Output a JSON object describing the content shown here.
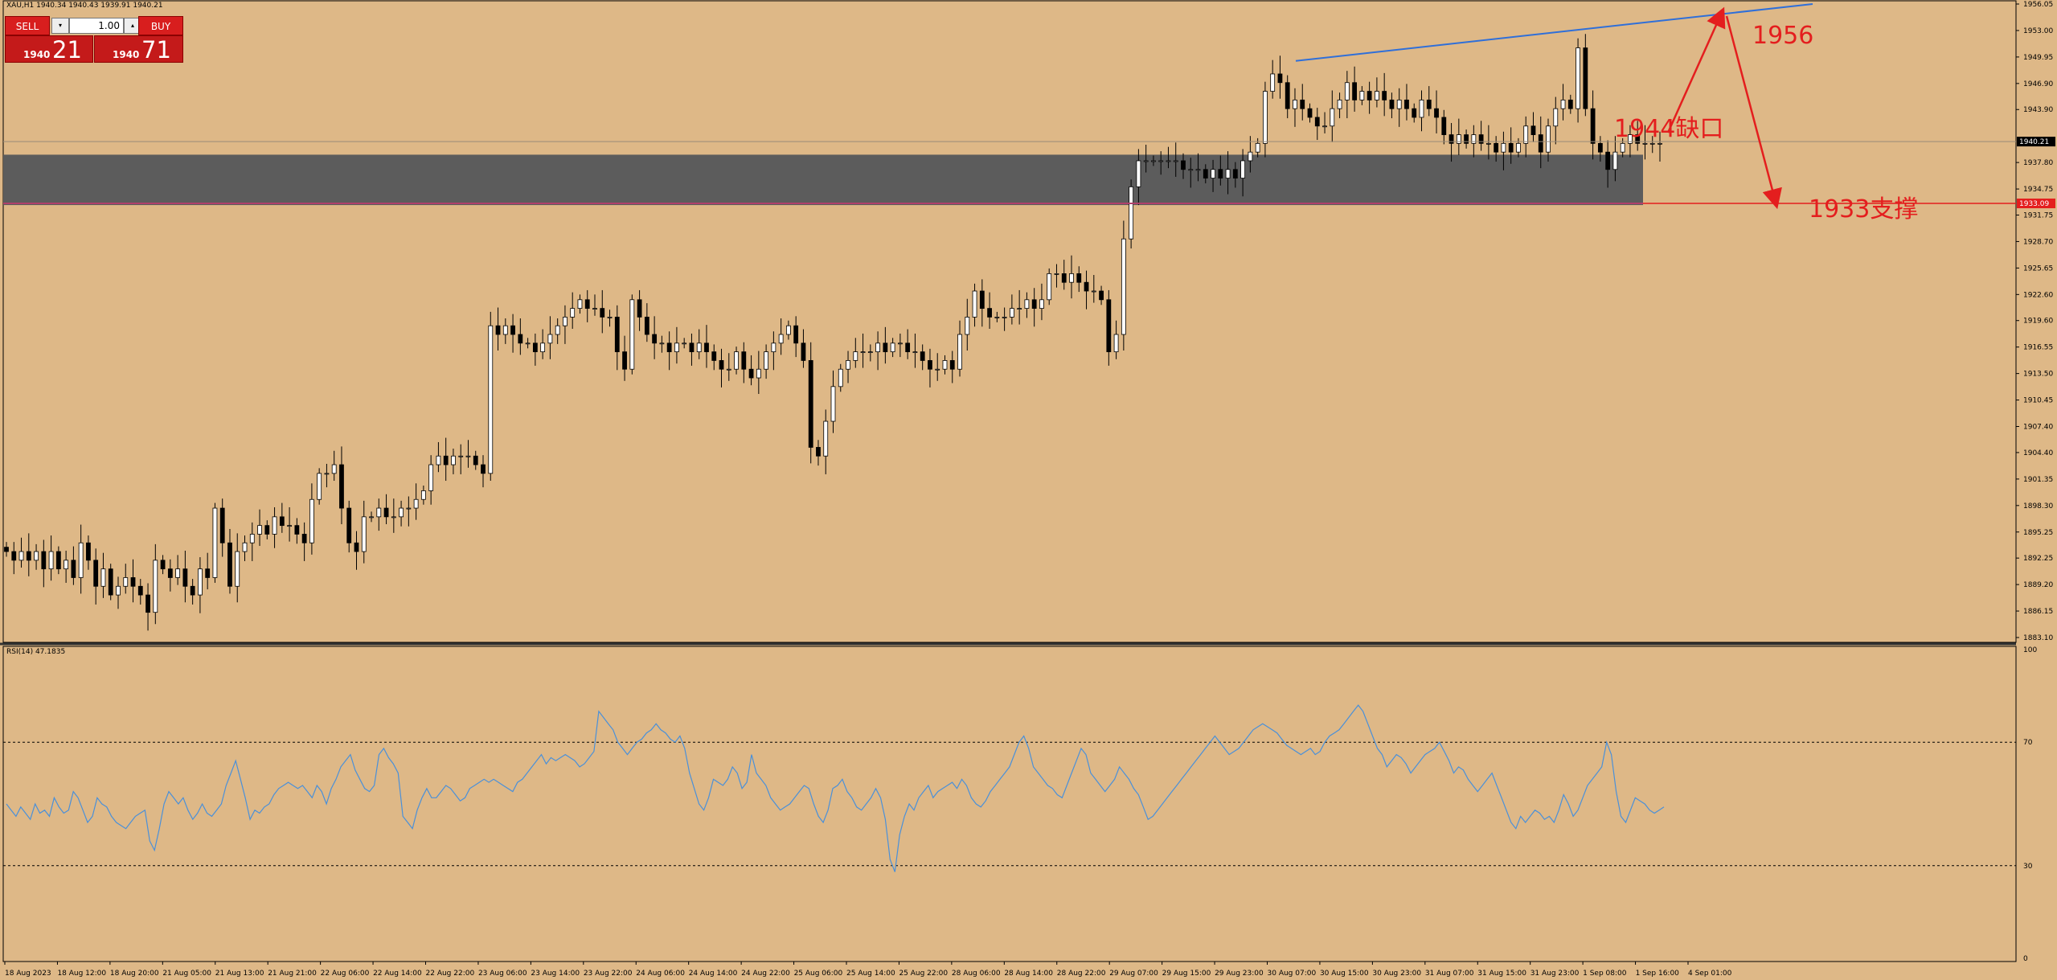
{
  "header": {
    "symbol_line": "XAU,H1  1940.34 1940.43 1939.91 1940.21"
  },
  "trade_panel": {
    "sell_label": "SELL",
    "buy_label": "BUY",
    "lots": "1.00",
    "bid_small": "1940",
    "bid_big": "21",
    "ask_small": "1940",
    "ask_big": "71"
  },
  "price_axis": [
    {
      "label": "1956.05",
      "value": 1956.05
    },
    {
      "label": "1953.00",
      "value": 1953.0
    },
    {
      "label": "1949.95",
      "value": 1949.95
    },
    {
      "label": "1946.90",
      "value": 1946.9
    },
    {
      "label": "1943.90",
      "value": 1943.9
    },
    {
      "label": "1937.80",
      "value": 1937.8
    },
    {
      "label": "1934.75",
      "value": 1934.75
    },
    {
      "label": "1931.75",
      "value": 1931.75
    },
    {
      "label": "1928.70",
      "value": 1928.7
    },
    {
      "label": "1925.65",
      "value": 1925.65
    },
    {
      "label": "1922.60",
      "value": 1922.6
    },
    {
      "label": "1919.60",
      "value": 1919.6
    },
    {
      "label": "1916.55",
      "value": 1916.55
    },
    {
      "label": "1913.50",
      "value": 1913.5
    },
    {
      "label": "1910.45",
      "value": 1910.45
    },
    {
      "label": "1907.40",
      "value": 1907.4
    },
    {
      "label": "1904.40",
      "value": 1904.4
    },
    {
      "label": "1901.35",
      "value": 1901.35
    },
    {
      "label": "1898.30",
      "value": 1898.3
    },
    {
      "label": "1895.25",
      "value": 1895.25
    },
    {
      "label": "1892.25",
      "value": 1892.25
    },
    {
      "label": "1889.20",
      "value": 1889.2
    },
    {
      "label": "1886.15",
      "value": 1886.15
    },
    {
      "label": "1883.10",
      "value": 1883.1
    }
  ],
  "current_price": {
    "label": "1940.21",
    "value": 1940.21
  },
  "support_price": {
    "label": "1933.09",
    "value": 1933.09
  },
  "time_axis": [
    "18 Aug 2023",
    "18 Aug 12:00",
    "18 Aug 20:00",
    "21 Aug 05:00",
    "21 Aug 13:00",
    "21 Aug 21:00",
    "22 Aug 06:00",
    "22 Aug 14:00",
    "22 Aug 22:00",
    "23 Aug 06:00",
    "23 Aug 14:00",
    "23 Aug 22:00",
    "24 Aug 06:00",
    "24 Aug 14:00",
    "24 Aug 22:00",
    "25 Aug 06:00",
    "25 Aug 14:00",
    "25 Aug 22:00",
    "28 Aug 06:00",
    "28 Aug 14:00",
    "28 Aug 22:00",
    "29 Aug 07:00",
    "29 Aug 15:00",
    "29 Aug 23:00",
    "30 Aug 07:00",
    "30 Aug 15:00",
    "30 Aug 23:00",
    "31 Aug 07:00",
    "31 Aug 15:00",
    "31 Aug 23:00",
    "1 Sep 08:00",
    "1 Sep 16:00",
    "4 Sep 01:00"
  ],
  "rsi": {
    "label": "RSI(14) 47.1835",
    "axis": [
      {
        "label": "100",
        "value": 100
      },
      {
        "label": "70",
        "value": 70
      },
      {
        "label": "30",
        "value": 30
      },
      {
        "label": "0",
        "value": 0
      }
    ],
    "values": [
      50,
      48,
      46,
      49,
      47,
      45,
      50,
      47,
      48,
      46,
      52,
      49,
      47,
      48,
      54,
      52,
      48,
      44,
      46,
      52,
      50,
      49,
      46,
      44,
      43,
      42,
      44,
      46,
      47,
      48,
      38,
      35,
      42,
      50,
      54,
      52,
      50,
      52,
      48,
      45,
      47,
      50,
      47,
      46,
      48,
      50,
      56,
      60,
      64,
      58,
      52,
      45,
      48,
      47,
      49,
      50,
      53,
      55,
      56,
      57,
      56,
      55,
      56,
      54,
      52,
      56,
      54,
      50,
      55,
      58,
      62,
      64,
      66,
      61,
      58,
      55,
      54,
      56,
      66,
      68,
      65,
      63,
      60,
      46,
      44,
      42,
      48,
      52,
      55,
      52,
      52,
      54,
      56,
      55,
      53,
      51,
      52,
      55,
      56,
      57,
      58,
      57,
      58,
      57,
      56,
      55,
      54,
      57,
      58,
      60,
      62,
      64,
      66,
      63,
      65,
      64,
      65,
      66,
      65,
      64,
      62,
      63,
      65,
      67,
      80,
      78,
      76,
      74,
      70,
      68,
      66,
      68,
      70,
      71,
      73,
      74,
      76,
      74,
      73,
      71,
      70,
      72,
      68,
      60,
      55,
      50,
      48,
      52,
      58,
      57,
      56,
      58,
      62,
      60,
      55,
      57,
      66,
      60,
      58,
      56,
      52,
      50,
      48,
      49,
      50,
      52,
      54,
      56,
      55,
      50,
      46,
      44,
      48,
      55,
      56,
      58,
      54,
      52,
      49,
      48,
      50,
      52,
      55,
      52,
      45,
      32,
      28,
      40,
      46,
      50,
      48,
      52,
      54,
      56,
      52,
      54,
      55,
      56,
      57,
      55,
      58,
      56,
      52,
      50,
      49,
      51,
      54,
      56,
      58,
      60,
      62,
      66,
      70,
      72,
      68,
      62,
      60,
      58,
      56,
      55,
      53,
      52,
      56,
      60,
      64,
      68,
      66,
      60,
      58,
      56,
      54,
      56,
      58,
      62,
      60,
      58,
      55,
      53,
      49,
      45,
      46,
      48,
      50,
      52,
      54,
      56,
      58,
      60,
      62,
      64,
      66,
      68,
      70,
      72,
      70,
      68,
      66,
      67,
      68,
      70,
      72,
      74,
      75,
      76,
      75,
      74,
      73,
      71,
      69,
      68,
      67,
      66,
      67,
      68,
      66,
      67,
      70,
      72,
      73,
      74,
      76,
      78,
      80,
      82,
      80,
      76,
      72,
      68,
      66,
      62,
      64,
      66,
      65,
      63,
      60,
      62,
      64,
      66,
      67,
      68,
      70,
      67,
      64,
      60,
      62,
      61,
      58,
      56,
      54,
      56,
      58,
      60,
      56,
      52,
      48,
      44,
      42,
      46,
      44,
      46,
      48,
      47,
      45,
      46,
      44,
      48,
      53,
      50,
      46,
      48,
      52,
      56,
      58,
      60,
      62,
      70,
      66,
      54,
      46,
      44,
      48,
      52,
      51,
      50,
      48,
      47,
      48,
      49
    ]
  },
  "annotations": {
    "gap_label": "1944缺口",
    "target_label": "1956",
    "support_label": "1933支撑"
  },
  "colors": {
    "background": "#deb887",
    "bull": "#ffffff",
    "bear": "#000000",
    "rsi_line": "#4a90d9",
    "trendline": "#2f6fd9",
    "annotation": "#e41e1e",
    "zone": "#5a5a5a"
  }
}
